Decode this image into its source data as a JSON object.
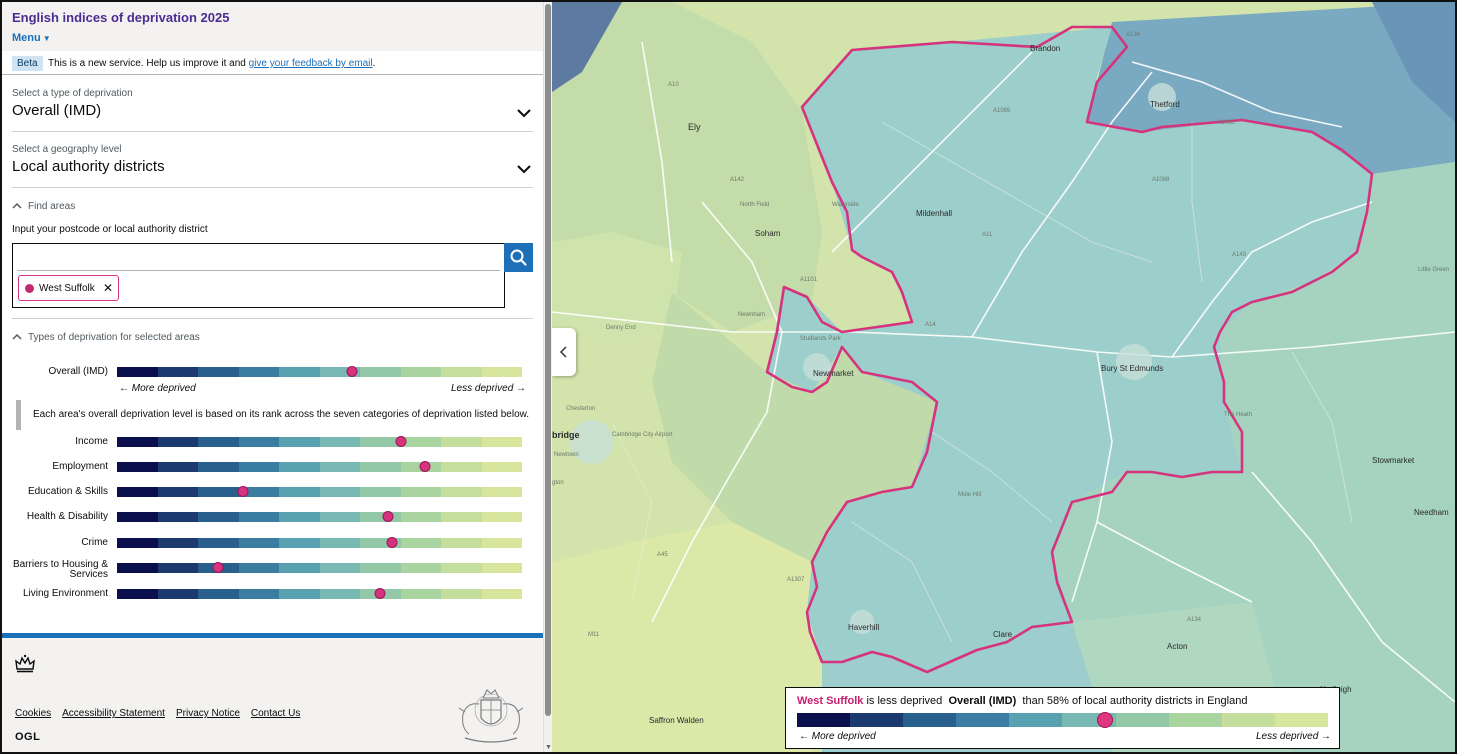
{
  "app": {
    "title": "English indices of deprivation 2025",
    "menu_label": "Menu"
  },
  "beta": {
    "tag": "Beta",
    "text": "This is a new service. Help us improve it and",
    "link": "give your feedback by email",
    "suffix": "."
  },
  "type_select": {
    "label": "Select a type of deprivation",
    "value": "Overall (IMD)"
  },
  "geo_select": {
    "label": "Select a geography level",
    "value": "Local authority districts"
  },
  "find": {
    "toggle": "Find areas",
    "input_label": "Input your postcode or local authority district",
    "input_value": "",
    "selected_chip": "West Suffolk",
    "chip_close": "✕",
    "search_icon": "search-icon"
  },
  "types": {
    "toggle": "Types of deprivation for selected areas",
    "more": "← More deprived",
    "less": "Less deprived →",
    "note": "Each area's overall deprivation level is based on its rank across the seven categories of deprivation listed below.",
    "overall": {
      "label": "Overall (IMD)",
      "percent": 58
    },
    "domains": [
      {
        "label": "Income",
        "percent": 70
      },
      {
        "label": "Employment",
        "percent": 76
      },
      {
        "label": "Education & Skills",
        "percent": 31
      },
      {
        "label": "Health & Disability",
        "percent": 67
      },
      {
        "label": "Crime",
        "percent": 68
      },
      {
        "label": "Barriers to Housing & Services",
        "percent": 25
      },
      {
        "label": "Living Environment",
        "percent": 65
      }
    ]
  },
  "scale_colors": [
    "#0b0f4d",
    "#1d3a6e",
    "#285f8c",
    "#3a7da0",
    "#58a1b0",
    "#78b9b4",
    "#92c8a8",
    "#a9d39f",
    "#c5de9d",
    "#d8e59d"
  ],
  "footer": {
    "links": [
      "Cookies",
      "Accessibility Statement",
      "Privacy Notice",
      "Contact Us"
    ],
    "ogl": "OGL",
    "crown_icon": "crown-icon",
    "crest_icon": "royal-coat-of-arms"
  },
  "map": {
    "places": [
      "Brandon",
      "Thetford",
      "Ely",
      "Mildenhall",
      "Soham",
      "North Field",
      "Waterside",
      "Newnham",
      "Studlands Park",
      "Newmarket",
      "Bury St Edmunds",
      "Denny End",
      "Chesterton",
      "bridge",
      "Cambridge City Airport",
      "Newtown",
      "gton",
      "Mole Hill",
      "The Heath",
      "Stowmarket",
      "Needham",
      "Little Green",
      "Haverhill",
      "Clare",
      "Acton",
      "Hadleigh",
      "Saffron Walden"
    ],
    "roads": [
      "A10",
      "A134",
      "A1065",
      "A11",
      "A142",
      "A14",
      "A143",
      "A1101",
      "A1066",
      "A1088",
      "A45",
      "M11",
      "A1307",
      "A134"
    ],
    "collapse_icon": "chevron-left-icon",
    "highlight_color": "#d6337e"
  },
  "legend": {
    "area": "West Suffolk",
    "middle": "is less deprived",
    "type": "Overall (IMD)",
    "suffix": "than 58% of local authority districts in England",
    "percent": 58,
    "more": "← More deprived",
    "less": "Less deprived →"
  }
}
